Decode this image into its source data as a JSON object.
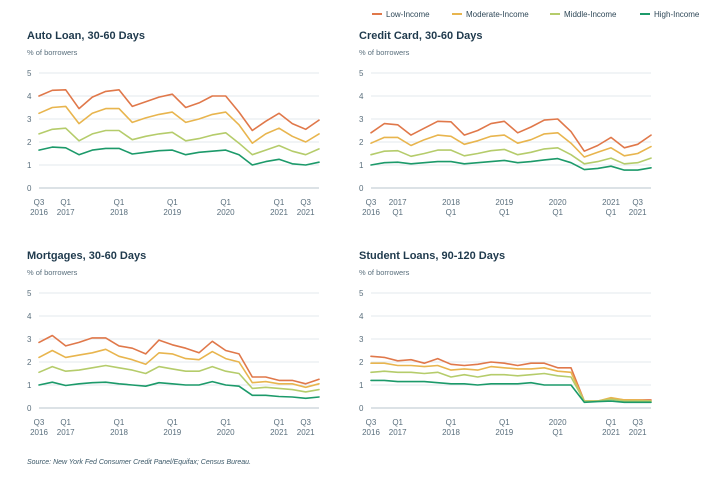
{
  "legend": {
    "items": [
      {
        "label": "Low-Income",
        "color": "#e0784a"
      },
      {
        "label": "Moderate-Income",
        "color": "#e8b54e"
      },
      {
        "label": "Middle-Income",
        "color": "#b5cc6b"
      },
      {
        "label": "High-Income",
        "color": "#1c9a6a"
      }
    ]
  },
  "source": "Source: New York Fed Consumer Credit Panel/Equifax; Census Bureau.",
  "chart_data": [
    {
      "type": "line",
      "title": "Auto Loan, 30-60 Days",
      "ylabel": "% of borrowers",
      "ylim": [
        0,
        5
      ],
      "yticks": [
        "0",
        "1",
        "2",
        "3",
        "4",
        "5"
      ],
      "xticks": [
        {
          "line1": "Q3",
          "line2": "2016"
        },
        {
          "line1": "Q1",
          "line2": "2017"
        },
        {
          "line1": "Q1",
          "line2": "2018"
        },
        {
          "line1": "Q1",
          "line2": "2019"
        },
        {
          "line1": "Q1",
          "line2": "2020"
        },
        {
          "line1": "Q1",
          "line2": "2021"
        },
        {
          "line1": "Q3",
          "line2": "2021"
        }
      ],
      "xtick_index": [
        0,
        2,
        6,
        10,
        14,
        18,
        20
      ],
      "series": [
        {
          "name": "Low-Income",
          "color": "#e0784a",
          "values": [
            4.0,
            4.25,
            4.27,
            3.45,
            3.95,
            4.2,
            4.27,
            3.55,
            3.75,
            3.95,
            4.08,
            3.5,
            3.7,
            4.0,
            4.0,
            3.3,
            2.5,
            2.9,
            3.25,
            2.8,
            2.55,
            2.95
          ]
        },
        {
          "name": "Moderate-Income",
          "color": "#e8b54e",
          "values": [
            3.25,
            3.5,
            3.55,
            2.8,
            3.25,
            3.45,
            3.45,
            2.85,
            3.05,
            3.2,
            3.3,
            2.85,
            3.0,
            3.2,
            3.3,
            2.75,
            1.95,
            2.35,
            2.6,
            2.25,
            2.0,
            2.35
          ]
        },
        {
          "name": "Middle-Income",
          "color": "#b5cc6b",
          "values": [
            2.35,
            2.55,
            2.6,
            2.05,
            2.35,
            2.5,
            2.5,
            2.1,
            2.25,
            2.35,
            2.42,
            2.05,
            2.15,
            2.3,
            2.4,
            1.95,
            1.45,
            1.65,
            1.85,
            1.6,
            1.45,
            1.7
          ]
        },
        {
          "name": "High-Income",
          "color": "#1c9a6a",
          "values": [
            1.65,
            1.78,
            1.75,
            1.45,
            1.65,
            1.72,
            1.72,
            1.48,
            1.55,
            1.62,
            1.65,
            1.45,
            1.55,
            1.6,
            1.65,
            1.45,
            1.0,
            1.15,
            1.25,
            1.05,
            1.0,
            1.12
          ]
        }
      ]
    },
    {
      "type": "line",
      "title": "Credit Card, 30-60 Days",
      "ylabel": "% of borrowers",
      "ylim": [
        0,
        5
      ],
      "yticks": [
        "0",
        "1",
        "2",
        "3",
        "4",
        "5"
      ],
      "xticks": [
        {
          "line1": "Q3",
          "line2": "2016"
        },
        {
          "line1": "2017",
          "line2": "Q1"
        },
        {
          "line1": "2018",
          "line2": "Q1"
        },
        {
          "line1": "2019",
          "line2": "Q1"
        },
        {
          "line1": "2020",
          "line2": "Q1"
        },
        {
          "line1": "2021",
          "line2": "Q1"
        },
        {
          "line1": "Q3",
          "line2": "2021"
        }
      ],
      "xtick_index": [
        0,
        2,
        6,
        10,
        14,
        18,
        20
      ],
      "series": [
        {
          "name": "Low-Income",
          "color": "#e0784a",
          "values": [
            2.4,
            2.8,
            2.75,
            2.3,
            2.6,
            2.9,
            2.88,
            2.3,
            2.5,
            2.8,
            2.9,
            2.4,
            2.65,
            2.95,
            3.0,
            2.45,
            1.6,
            1.85,
            2.2,
            1.75,
            1.9,
            2.3
          ]
        },
        {
          "name": "Moderate-Income",
          "color": "#e8b54e",
          "values": [
            1.95,
            2.2,
            2.2,
            1.85,
            2.1,
            2.3,
            2.25,
            1.9,
            2.05,
            2.25,
            2.3,
            1.95,
            2.1,
            2.35,
            2.4,
            1.95,
            1.35,
            1.55,
            1.75,
            1.4,
            1.5,
            1.8
          ]
        },
        {
          "name": "Middle-Income",
          "color": "#b5cc6b",
          "values": [
            1.45,
            1.6,
            1.62,
            1.38,
            1.5,
            1.65,
            1.65,
            1.4,
            1.5,
            1.62,
            1.68,
            1.45,
            1.55,
            1.7,
            1.75,
            1.45,
            1.05,
            1.15,
            1.3,
            1.05,
            1.1,
            1.3
          ]
        },
        {
          "name": "High-Income",
          "color": "#1c9a6a",
          "values": [
            1.0,
            1.1,
            1.12,
            1.05,
            1.1,
            1.15,
            1.15,
            1.05,
            1.1,
            1.15,
            1.2,
            1.1,
            1.15,
            1.22,
            1.28,
            1.1,
            0.8,
            0.85,
            0.95,
            0.78,
            0.78,
            0.88
          ]
        }
      ]
    },
    {
      "type": "line",
      "title": "Mortgages, 30-60 Days",
      "ylabel": "% of borrowers",
      "ylim": [
        0,
        5
      ],
      "yticks": [
        "0",
        "1",
        "2",
        "3",
        "4",
        "5"
      ],
      "xticks": [
        {
          "line1": "Q3",
          "line2": "2016"
        },
        {
          "line1": "Q1",
          "line2": "2017"
        },
        {
          "line1": "Q1",
          "line2": "2018"
        },
        {
          "line1": "Q1",
          "line2": "2019"
        },
        {
          "line1": "Q1",
          "line2": "2020"
        },
        {
          "line1": "Q1",
          "line2": "2021"
        },
        {
          "line1": "Q3",
          "line2": "2021"
        }
      ],
      "xtick_index": [
        0,
        2,
        6,
        10,
        14,
        18,
        20
      ],
      "series": [
        {
          "name": "Low-Income",
          "color": "#e0784a",
          "values": [
            2.85,
            3.15,
            2.7,
            2.85,
            3.05,
            3.05,
            2.7,
            2.6,
            2.35,
            2.95,
            2.75,
            2.6,
            2.4,
            2.9,
            2.5,
            2.35,
            1.35,
            1.35,
            1.2,
            1.2,
            1.05,
            1.25
          ]
        },
        {
          "name": "Moderate-Income",
          "color": "#e8b54e",
          "values": [
            2.2,
            2.5,
            2.2,
            2.3,
            2.4,
            2.55,
            2.25,
            2.1,
            1.9,
            2.4,
            2.35,
            2.15,
            2.1,
            2.45,
            2.15,
            2.0,
            1.1,
            1.15,
            1.05,
            1.05,
            0.9,
            1.05
          ]
        },
        {
          "name": "Middle-Income",
          "color": "#b5cc6b",
          "values": [
            1.55,
            1.8,
            1.6,
            1.65,
            1.75,
            1.85,
            1.75,
            1.65,
            1.5,
            1.8,
            1.7,
            1.6,
            1.6,
            1.8,
            1.6,
            1.5,
            0.85,
            0.9,
            0.85,
            0.8,
            0.7,
            0.8
          ]
        },
        {
          "name": "High-Income",
          "color": "#1c9a6a",
          "values": [
            1.0,
            1.12,
            0.98,
            1.05,
            1.1,
            1.12,
            1.05,
            1.0,
            0.95,
            1.1,
            1.05,
            1.0,
            1.0,
            1.15,
            1.0,
            0.95,
            0.55,
            0.55,
            0.5,
            0.48,
            0.42,
            0.48
          ]
        }
      ]
    },
    {
      "type": "line",
      "title": "Student Loans, 90-120 Days",
      "ylabel": "% of borrowers",
      "ylim": [
        0,
        5
      ],
      "yticks": [
        "0",
        "1",
        "2",
        "3",
        "4",
        "5"
      ],
      "xticks": [
        {
          "line1": "Q3",
          "line2": "2016"
        },
        {
          "line1": "Q1",
          "line2": "2017"
        },
        {
          "line1": "Q1",
          "line2": "2018"
        },
        {
          "line1": "Q1",
          "line2": "2019"
        },
        {
          "line1": "2020",
          "line2": "Q1"
        },
        {
          "line1": "Q1",
          "line2": "2021"
        },
        {
          "line1": "Q3",
          "line2": "2021"
        }
      ],
      "xtick_index": [
        0,
        2,
        6,
        10,
        14,
        18,
        20
      ],
      "series": [
        {
          "name": "Low-Income",
          "color": "#e0784a",
          "values": [
            2.25,
            2.2,
            2.05,
            2.1,
            1.95,
            2.15,
            1.9,
            1.85,
            1.9,
            2.0,
            1.95,
            1.85,
            1.95,
            1.95,
            1.75,
            1.75,
            0.3,
            0.3,
            0.4,
            0.35,
            0.35,
            0.35
          ]
        },
        {
          "name": "Moderate-Income",
          "color": "#e8b54e",
          "values": [
            1.95,
            1.95,
            1.85,
            1.85,
            1.8,
            1.85,
            1.65,
            1.7,
            1.65,
            1.8,
            1.75,
            1.7,
            1.7,
            1.75,
            1.6,
            1.55,
            0.3,
            0.3,
            0.45,
            0.35,
            0.35,
            0.3
          ]
        },
        {
          "name": "Middle-Income",
          "color": "#b5cc6b",
          "values": [
            1.55,
            1.6,
            1.55,
            1.55,
            1.5,
            1.55,
            1.35,
            1.45,
            1.35,
            1.45,
            1.45,
            1.4,
            1.45,
            1.5,
            1.4,
            1.35,
            0.3,
            0.3,
            0.38,
            0.3,
            0.3,
            0.3
          ]
        },
        {
          "name": "High-Income",
          "color": "#1c9a6a",
          "values": [
            1.2,
            1.2,
            1.15,
            1.15,
            1.15,
            1.1,
            1.05,
            1.05,
            1.0,
            1.05,
            1.05,
            1.05,
            1.1,
            1.0,
            1.0,
            1.0,
            0.25,
            0.28,
            0.3,
            0.25,
            0.25,
            0.25
          ]
        }
      ]
    }
  ]
}
